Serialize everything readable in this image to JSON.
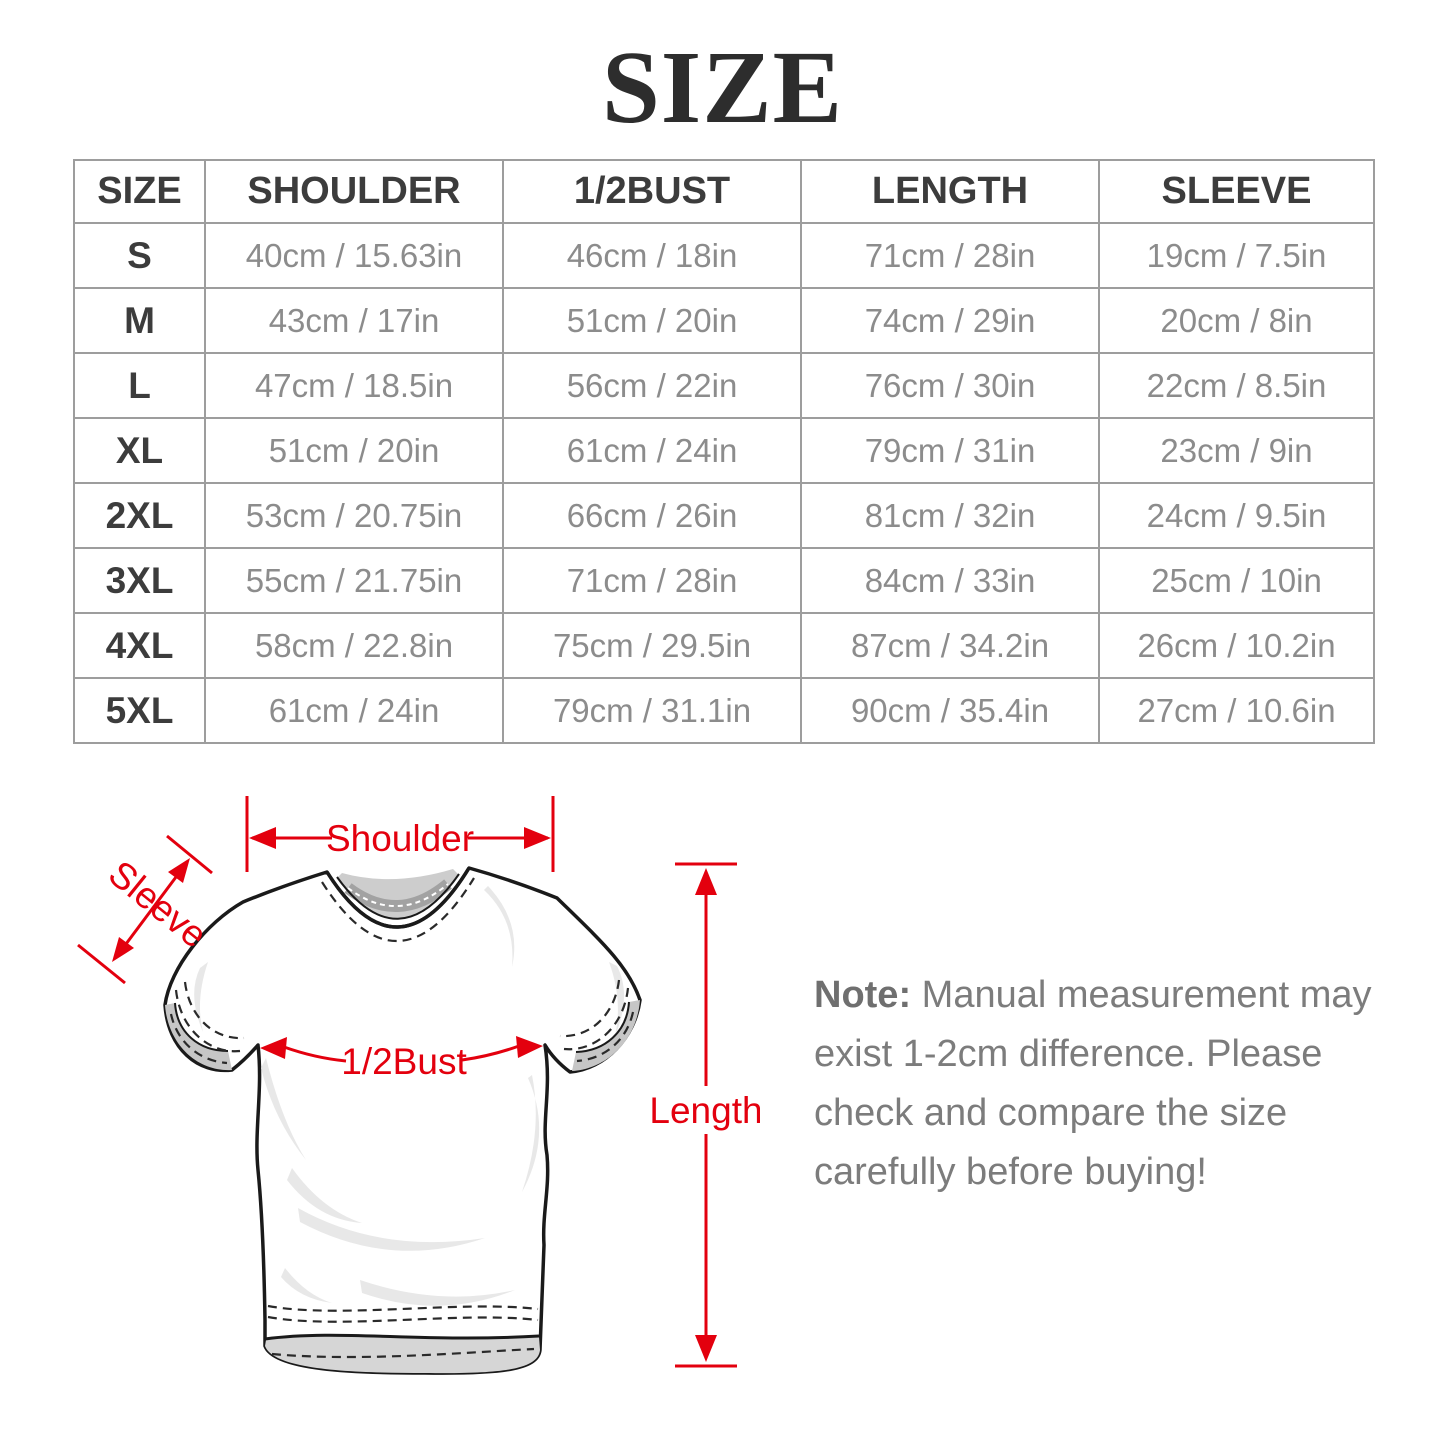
{
  "title": "SIZE",
  "table": {
    "columns": [
      "SIZE",
      "SHOULDER",
      "1/2BUST",
      "LENGTH",
      "SLEEVE"
    ],
    "rows": [
      [
        "S",
        "40cm / 15.63in",
        "46cm / 18in",
        "71cm / 28in",
        "19cm / 7.5in"
      ],
      [
        "M",
        "43cm / 17in",
        "51cm / 20in",
        "74cm / 29in",
        "20cm / 8in"
      ],
      [
        "L",
        "47cm / 18.5in",
        "56cm / 22in",
        "76cm / 30in",
        "22cm / 8.5in"
      ],
      [
        "XL",
        "51cm / 20in",
        "61cm / 24in",
        "79cm / 31in",
        "23cm / 9in"
      ],
      [
        "2XL",
        "53cm / 20.75in",
        "66cm / 26in",
        "81cm / 32in",
        "24cm / 9.5in"
      ],
      [
        "3XL",
        "55cm / 21.75in",
        "71cm / 28in",
        "84cm / 33in",
        "25cm / 10in"
      ],
      [
        "4XL",
        "58cm / 22.8in",
        "75cm / 29.5in",
        "87cm / 34.2in",
        "26cm / 10.2in"
      ],
      [
        "5XL",
        "61cm / 24in",
        "79cm / 31.1in",
        "90cm / 35.4in",
        "27cm / 10.6in"
      ]
    ]
  },
  "chart_data": {
    "type": "table",
    "title": "SIZE",
    "columns": [
      "SIZE",
      "SHOULDER",
      "1/2BUST",
      "LENGTH",
      "SLEEVE"
    ],
    "rows": [
      [
        "S",
        "40cm / 15.63in",
        "46cm / 18in",
        "71cm / 28in",
        "19cm / 7.5in"
      ],
      [
        "M",
        "43cm / 17in",
        "51cm / 20in",
        "74cm / 29in",
        "20cm / 8in"
      ],
      [
        "L",
        "47cm / 18.5in",
        "56cm / 22in",
        "76cm / 30in",
        "22cm / 8.5in"
      ],
      [
        "XL",
        "51cm / 20in",
        "61cm / 24in",
        "79cm / 31in",
        "23cm / 9in"
      ],
      [
        "2XL",
        "53cm / 20.75in",
        "66cm / 26in",
        "81cm / 32in",
        "24cm / 9.5in"
      ],
      [
        "3XL",
        "55cm / 21.75in",
        "71cm / 28in",
        "84cm / 33in",
        "25cm / 10in"
      ],
      [
        "4XL",
        "58cm / 22.8in",
        "75cm / 29.5in",
        "87cm / 34.2in",
        "26cm / 10.2in"
      ],
      [
        "5XL",
        "61cm / 24in",
        "79cm / 31.1in",
        "90cm / 35.4in",
        "27cm / 10.6in"
      ]
    ]
  },
  "diagram": {
    "labels": {
      "shoulder": "Shoulder",
      "sleeve": "Sleeve",
      "bust": "1/2Bust",
      "length": "Length"
    }
  },
  "note": {
    "prefix": "Note:",
    "lines": [
      "Manual measurement may",
      "exist 1-2cm difference. Please",
      "check and compare the size",
      "carefully before buying!"
    ]
  },
  "colors": {
    "annotation_red": "#e3000e",
    "table_border": "#9d9d9d",
    "header_text": "#3c3c3c",
    "value_text": "#8c8c8c",
    "note_text": "#7c7c7c",
    "title_text": "#2d2d2d"
  }
}
